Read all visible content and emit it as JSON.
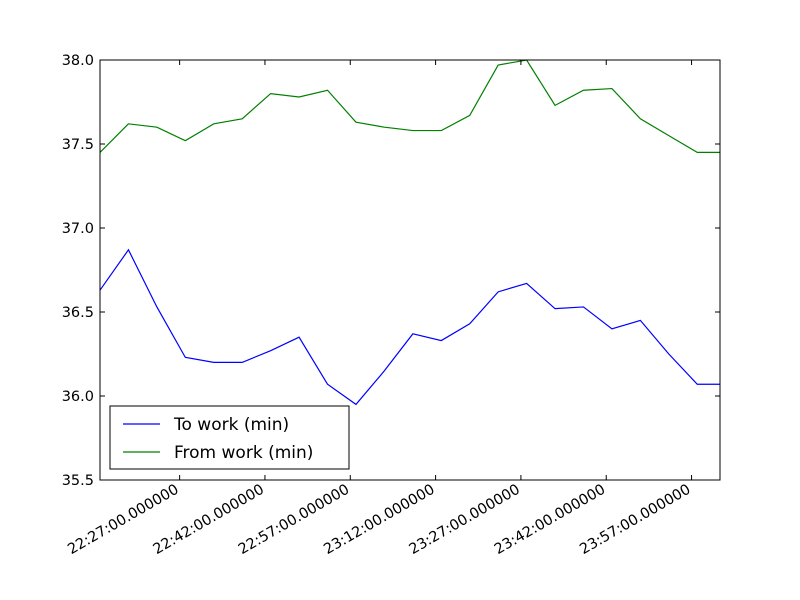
{
  "chart_data": {
    "type": "line",
    "title": "",
    "xlabel": "",
    "ylabel": "",
    "ylim": [
      35.5,
      38.0
    ],
    "yticks": [
      35.5,
      36.0,
      36.5,
      37.0,
      37.5,
      38.0
    ],
    "ytick_labels": [
      "35.5",
      "36.0",
      "36.5",
      "37.0",
      "37.5",
      "38.0"
    ],
    "xlim": [
      "22:13",
      "00:02"
    ],
    "xticks": [
      "22:27",
      "22:42",
      "22:57",
      "23:12",
      "23:27",
      "23:42",
      "23:57"
    ],
    "xtick_labels": [
      "22:27:00.000000",
      "22:42:00.000000",
      "22:57:00.000000",
      "23:12:00.000000",
      "23:27:00.000000",
      "23:42:00.000000",
      "23:57:00.000000"
    ],
    "x": [
      "22:13",
      "22:18",
      "22:23",
      "22:28",
      "22:33",
      "22:38",
      "22:43",
      "22:48",
      "22:53",
      "22:58",
      "23:03",
      "23:08",
      "23:13",
      "23:18",
      "23:23",
      "23:28",
      "23:33",
      "23:38",
      "23:43",
      "23:48",
      "23:53",
      "23:58",
      "00:02"
    ],
    "series": [
      {
        "name": "To work (min)",
        "color": "#0000ff",
        "values": [
          36.63,
          36.87,
          36.53,
          36.23,
          36.2,
          36.2,
          36.27,
          36.35,
          36.07,
          35.95,
          36.15,
          36.37,
          36.33,
          36.43,
          36.62,
          36.67,
          36.52,
          36.53,
          36.4,
          36.45,
          36.25,
          36.07,
          36.07
        ]
      },
      {
        "name": "From work (min)",
        "color": "#008000",
        "values": [
          37.45,
          37.62,
          37.6,
          37.52,
          37.62,
          37.65,
          37.8,
          37.78,
          37.82,
          37.63,
          37.6,
          37.58,
          37.58,
          37.67,
          37.97,
          38.0,
          37.73,
          37.82,
          37.83,
          37.65,
          37.55,
          37.45,
          37.45
        ]
      }
    ],
    "legend_position": "lower-left",
    "grid": false
  }
}
